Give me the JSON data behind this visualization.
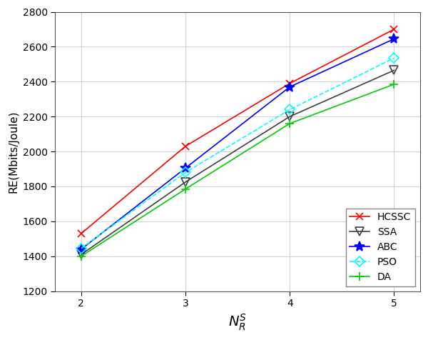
{
  "x": [
    2,
    3,
    4,
    5
  ],
  "series_order": [
    "HCSSC",
    "SSA",
    "ABC",
    "PSO",
    "DA"
  ],
  "series": {
    "HCSSC": {
      "y": [
        1530,
        2030,
        2390,
        2700
      ],
      "color": "#ff0000",
      "marker": "x",
      "markersize": 7,
      "linewidth": 1.2,
      "linestyle": "-",
      "markerfacecolor": "#ff0000",
      "markeredgecolor": "#ff0000"
    },
    "SSA": {
      "y": [
        1410,
        1825,
        2200,
        2465
      ],
      "color": "#404040",
      "marker": "v",
      "markersize": 8,
      "linewidth": 1.2,
      "linestyle": "-",
      "markerfacecolor": "none",
      "markeredgecolor": "#404040"
    },
    "ABC": {
      "y": [
        1440,
        1905,
        2370,
        2645
      ],
      "color": "#0000ff",
      "marker": "*",
      "markersize": 10,
      "linewidth": 1.2,
      "linestyle": "-",
      "markerfacecolor": "#0000ff",
      "markeredgecolor": "#0000ff"
    },
    "PSO": {
      "y": [
        1445,
        1880,
        2240,
        2535
      ],
      "color": "#00ffff",
      "marker": "D",
      "markersize": 7,
      "linewidth": 1.2,
      "linestyle": "--",
      "markerfacecolor": "none",
      "markeredgecolor": "#00ffff"
    },
    "DA": {
      "y": [
        1400,
        1785,
        2160,
        2385
      ],
      "color": "#00cc00",
      "marker": "+",
      "markersize": 8,
      "linewidth": 1.2,
      "linestyle": "-",
      "markerfacecolor": "#00cc00",
      "markeredgecolor": "#00cc00"
    }
  },
  "xlabel": "$N_R^S$",
  "ylabel": "RE(Mbits/Joule)",
  "xlim": [
    1.75,
    5.25
  ],
  "ylim": [
    1200,
    2800
  ],
  "yticks": [
    1200,
    1400,
    1600,
    1800,
    2000,
    2200,
    2400,
    2600,
    2800
  ],
  "xticks": [
    2,
    3,
    4,
    5
  ],
  "legend_loc": "lower right",
  "background_color": "#ffffff",
  "axes_bg_color": "#ffffff",
  "grid_color": "#d3d3d3",
  "xlabel_fontsize": 14,
  "ylabel_fontsize": 11,
  "tick_fontsize": 10,
  "legend_fontsize": 10
}
